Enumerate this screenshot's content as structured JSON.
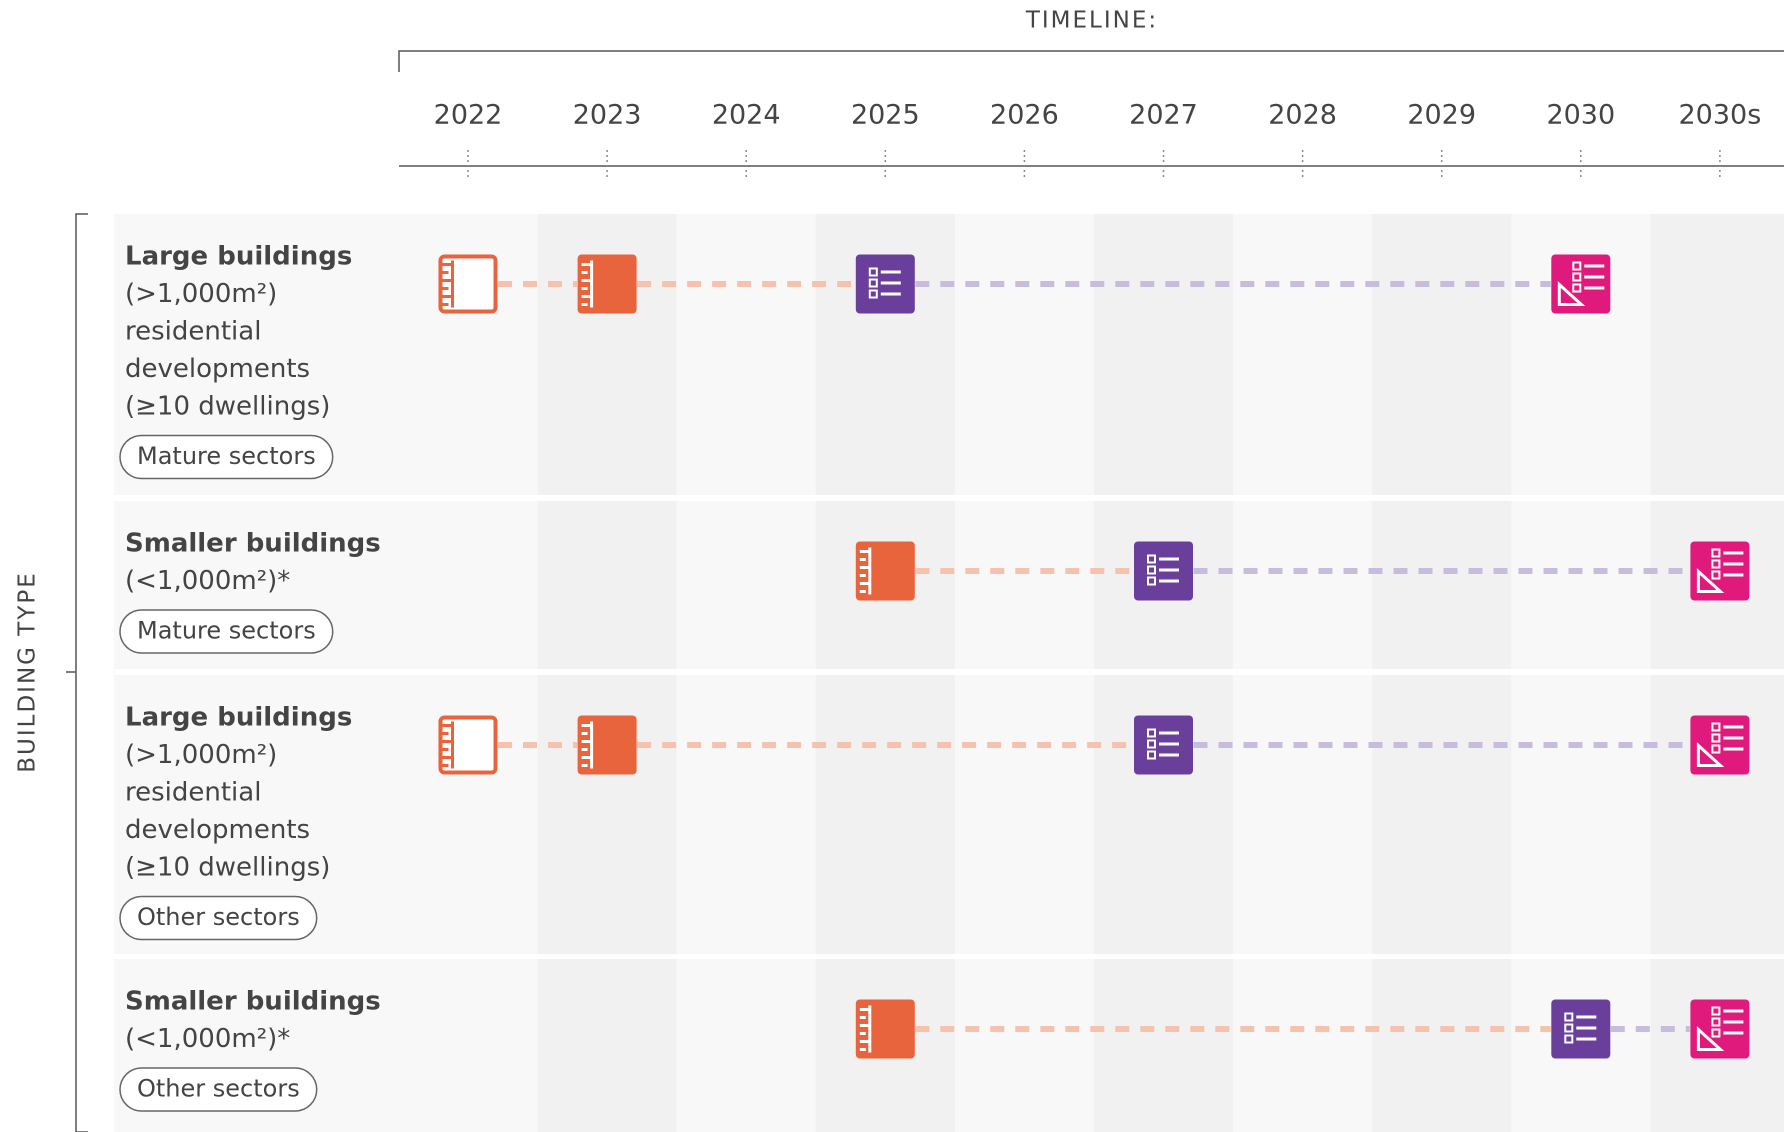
{
  "timeline_label": "TIMELINE:",
  "axis_label": "BUILDING TYPE",
  "years": [
    "2022",
    "2023",
    "2024",
    "2025",
    "2026",
    "2027",
    "2028",
    "2029",
    "2030",
    "2030s"
  ],
  "rows": [
    {
      "title": "Large buildings",
      "size": "(>1,000m²)",
      "description": [
        "residential",
        "developments",
        "(≥10 dwellings)"
      ],
      "tag": "Mature sectors",
      "milestones": [
        "2022",
        "2023",
        "2025",
        "2030"
      ]
    },
    {
      "title": "Smaller buildings",
      "size": "(<1,000m²)*",
      "description": [],
      "tag": "Mature sectors",
      "milestones": [
        "2025",
        "2027",
        "2030s"
      ]
    },
    {
      "title": "Large buildings",
      "size": "(>1,000m²)",
      "description": [
        "residential",
        "developments",
        "(≥10 dwellings)"
      ],
      "tag": "Other sectors",
      "milestones": [
        "2022",
        "2023",
        "2027",
        "2030s"
      ]
    },
    {
      "title": "Smaller buildings",
      "size": "(<1,000m²)*",
      "description": [],
      "tag": "Other sectors",
      "milestones": [
        "2025",
        "2030",
        "2030s"
      ]
    }
  ]
}
